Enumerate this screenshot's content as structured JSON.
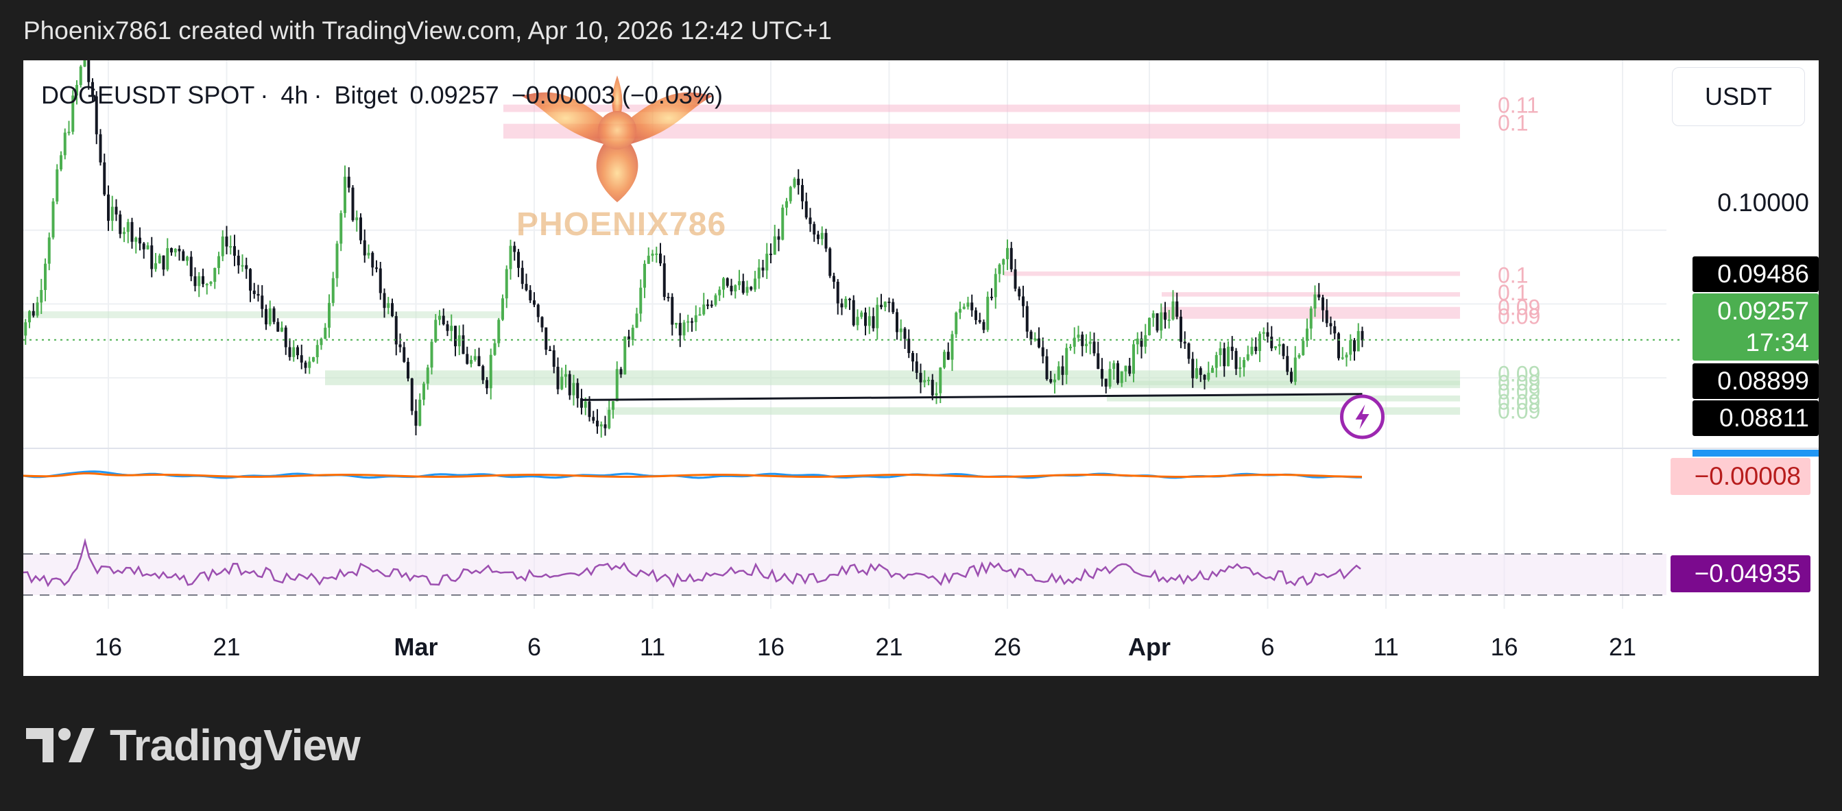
{
  "header": {
    "text": "Phoenix7861 created with TradingView.com, Apr 10, 2026 12:42 UTC+1"
  },
  "symbol": {
    "name": "DOGEUSDT SPOT",
    "interval": "4h",
    "exchange": "Bitget",
    "price": "0.09257",
    "change": "−0.00003 (−0.03%)",
    "sep": "·"
  },
  "unit_button": "USDT",
  "watermark": {
    "text": "PHOENIX786"
  },
  "footer": {
    "brand": "TradingView"
  },
  "colors": {
    "up": "#4caf50",
    "down": "#131722",
    "support_zone": "#c8e6c9",
    "resistance_zone": "#f8bbd0",
    "macd": "#2196f3",
    "signal": "#ff6d00",
    "oscillator": "#9c4fb0",
    "alert_icon": "#9c27b0"
  },
  "price_labels": {
    "tick": "0.10000",
    "level_high": "0.09486",
    "last": "0.09257",
    "countdown": "17:34",
    "level_low1": "0.08899",
    "level_low2": "0.08811",
    "macd_value": "−0.00008",
    "osc_value": "−0.04935"
  },
  "zone_labels": {
    "resistance": [
      "0.11",
      "0.1",
      "0.1",
      "0.1",
      "0.09",
      "0.09"
    ],
    "support": [
      "0.09",
      "0.09",
      "0.09",
      "0.09",
      "0.09"
    ]
  },
  "chart_data": {
    "type": "candlestick",
    "title": "DOGEUSDT SPOT · 4h · Bitget",
    "x_ticks": [
      "16",
      "21",
      "Mar",
      "6",
      "11",
      "16",
      "21",
      "26",
      "Apr",
      "6",
      "11",
      "16",
      "21"
    ],
    "y_ticks": [
      0.1
    ],
    "ylim": [
      0.0855,
      0.1115
    ],
    "last_price": 0.09257,
    "levels": {
      "high": 0.09486,
      "low1": 0.08899,
      "low2": 0.08811
    },
    "support_line": {
      "from": [
        "Mar 8",
        0.0885
      ],
      "to": [
        "Apr 10",
        0.0889
      ]
    },
    "close_path": [
      [
        "Feb 12",
        0.0928
      ],
      [
        "Feb 13",
        0.095
      ],
      [
        "Feb 14",
        0.105
      ],
      [
        "Feb 15",
        0.112
      ],
      [
        "Feb 16",
        0.101
      ],
      [
        "Feb 17",
        0.1
      ],
      [
        "Feb 18",
        0.0975
      ],
      [
        "Feb 19",
        0.099
      ],
      [
        "Feb 20",
        0.096
      ],
      [
        "Feb 21",
        0.0995
      ],
      [
        "Feb 22",
        0.096
      ],
      [
        "Feb 23",
        0.0935
      ],
      [
        "Feb 24",
        0.091
      ],
      [
        "Feb 25",
        0.092
      ],
      [
        "Feb 26",
        0.103
      ],
      [
        "Feb 27",
        0.098
      ],
      [
        "Feb 28",
        0.094
      ],
      [
        "Mar 1",
        0.087
      ],
      [
        "Mar 2",
        0.095
      ],
      [
        "Mar 3",
        0.0915
      ],
      [
        "Mar 4",
        0.09
      ],
      [
        "Mar 5",
        0.099
      ],
      [
        "Mar 6",
        0.0945
      ],
      [
        "Mar 7",
        0.09
      ],
      [
        "Mar 8",
        0.0885
      ],
      [
        "Mar 9",
        0.087
      ],
      [
        "Mar 10",
        0.093
      ],
      [
        "Mar 11",
        0.099
      ],
      [
        "Mar 12",
        0.093
      ],
      [
        "Mar 13",
        0.094
      ],
      [
        "Mar 14",
        0.097
      ],
      [
        "Mar 15",
        0.0955
      ],
      [
        "Mar 16",
        0.0985
      ],
      [
        "Mar 17",
        0.103
      ],
      [
        "Mar 18",
        0.1
      ],
      [
        "Mar 19",
        0.095
      ],
      [
        "Mar 20",
        0.0935
      ],
      [
        "Mar 21",
        0.095
      ],
      [
        "Mar 22",
        0.091
      ],
      [
        "Mar 23",
        0.089
      ],
      [
        "Mar 24",
        0.095
      ],
      [
        "Mar 25",
        0.094
      ],
      [
        "Mar 26",
        0.0985
      ],
      [
        "Mar 27",
        0.093
      ],
      [
        "Mar 28",
        0.0895
      ],
      [
        "Mar 29",
        0.0935
      ],
      [
        "Mar 30",
        0.09
      ],
      [
        "Mar 31",
        0.0905
      ],
      [
        "Apr 1",
        0.0935
      ],
      [
        "Apr 2",
        0.0945
      ],
      [
        "Apr 3",
        0.09
      ],
      [
        "Apr 4",
        0.0915
      ],
      [
        "Apr 5",
        0.091
      ],
      [
        "Apr 6",
        0.093
      ],
      [
        "Apr 7",
        0.0905
      ],
      [
        "Apr 8",
        0.0955
      ],
      [
        "Apr 9",
        0.092
      ],
      [
        "Apr 10",
        0.09257
      ]
    ]
  }
}
